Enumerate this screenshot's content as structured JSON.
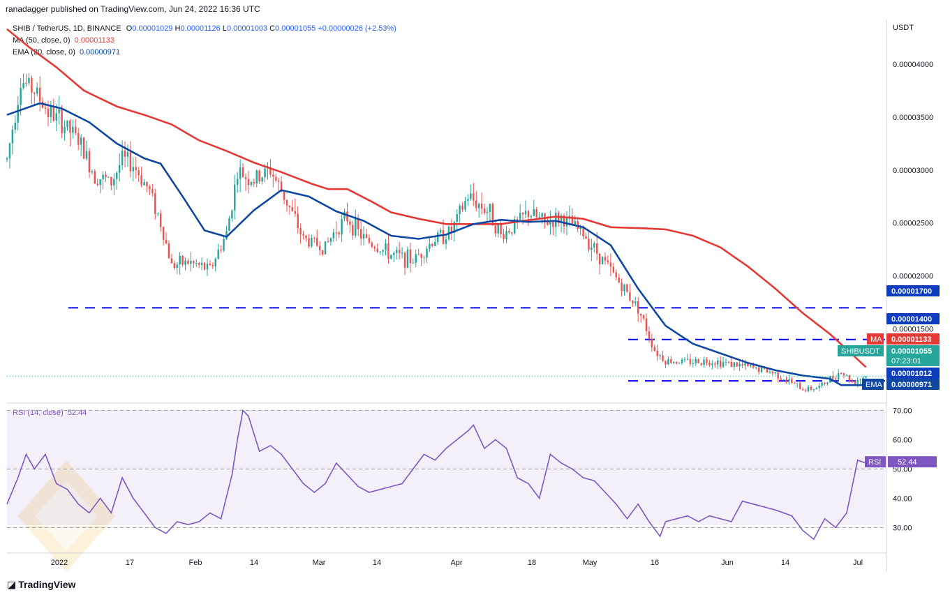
{
  "header": {
    "published_by": "ranadagger published on TradingView.com, Jun 24, 2022 16:36 UTC",
    "symbol": "SHIB / TetherUS, 1D, BINANCE",
    "open_label": "O",
    "open": "0.00001029",
    "high_label": "H",
    "high": "0.00001126",
    "low_label": "L",
    "low": "0.00001003",
    "close_label": "C",
    "close": "0.00001055",
    "change": "+0.00000026 (+2.53%)",
    "ma_label": "MA (50, close, 0)",
    "ma_value": "0.00001133",
    "ema_label": "EMA (20, close, 0)",
    "ema_value": "0.00000971"
  },
  "currency": "USDT",
  "brand": "TradingView",
  "rsi": {
    "label": "RSI (14, close)",
    "value": "52.44"
  },
  "colors": {
    "up": "#26a69a",
    "down": "#ef5350",
    "ma": "#e53935",
    "ema": "#0d47a1",
    "rsi": "#7e57c2",
    "level": "#1a1aff"
  },
  "chart_data": [
    {
      "type": "candlestick",
      "title": "",
      "x_ticks": [
        "2022",
        "17",
        "Feb",
        "14",
        "Mar",
        "14",
        "Apr",
        "18",
        "May",
        "16",
        "Jun",
        "14",
        "Jul"
      ],
      "y_ticks": [
        "0.00004000",
        "0.00003500",
        "0.00003000",
        "0.00002500",
        "0.00002000",
        "0.00001500"
      ],
      "ylim": [
        8.2e-06,
        4.42e-05
      ],
      "horizontal_levels": [
        1.7e-05,
        1.4e-05,
        1.01e-05
      ],
      "price_labels": [
        {
          "text": "0.00001700",
          "style": "level"
        },
        {
          "text": "0.00001400",
          "style": "level"
        },
        {
          "tag": "MA",
          "text": "0.00001133",
          "style": "ma"
        },
        {
          "tag": "SHIBUSDT",
          "text": "0.00001055",
          "sub": "07:23:01",
          "style": "last"
        },
        {
          "text": "0.00001012",
          "style": "level"
        },
        {
          "tag": "EMA",
          "text": "0.00000971",
          "style": "ema"
        }
      ],
      "series": [
        {
          "name": "MA",
          "values": [
            [
              0,
              4.33e-05
            ],
            [
              8,
              4.16e-05
            ],
            [
              18,
              3.97e-05
            ],
            [
              28,
              3.75e-05
            ],
            [
              40,
              3.6e-05
            ],
            [
              50,
              3.52e-05
            ],
            [
              60,
              3.43e-05
            ],
            [
              70,
              3.28e-05
            ],
            [
              80,
              3.18e-05
            ],
            [
              90,
              3.07e-05
            ],
            [
              100,
              2.98e-05
            ],
            [
              111,
              2.87e-05
            ],
            [
              117,
              2.82e-05
            ],
            [
              124,
              2.82e-05
            ],
            [
              133,
              2.7e-05
            ],
            [
              140,
              2.6e-05
            ],
            [
              150,
              2.54e-05
            ],
            [
              160,
              2.49e-05
            ],
            [
              170,
              2.49e-05
            ],
            [
              180,
              2.49e-05
            ],
            [
              188,
              2.52e-05
            ],
            [
              200,
              2.56e-05
            ],
            [
              210,
              2.54e-05
            ],
            [
              220,
              2.46e-05
            ],
            [
              232,
              2.45e-05
            ],
            [
              240,
              2.44e-05
            ],
            [
              250,
              2.38e-05
            ],
            [
              260,
              2.27e-05
            ],
            [
              270,
              2.09e-05
            ],
            [
              280,
              1.88e-05
            ],
            [
              290,
              1.65e-05
            ],
            [
              300,
              1.45e-05
            ],
            [
              308,
              1.26e-05
            ],
            [
              313,
              1.14e-05
            ]
          ]
        },
        {
          "name": "EMA",
          "values": [
            [
              0,
              3.52e-05
            ],
            [
              12,
              3.63e-05
            ],
            [
              20,
              3.58e-05
            ],
            [
              30,
              3.45e-05
            ],
            [
              40,
              3.25e-05
            ],
            [
              50,
              3.11e-05
            ],
            [
              56,
              3.06e-05
            ],
            [
              64,
              2.75e-05
            ],
            [
              72,
              2.43e-05
            ],
            [
              80,
              2.37e-05
            ],
            [
              90,
              2.62e-05
            ],
            [
              100,
              2.81e-05
            ],
            [
              110,
              2.75e-05
            ],
            [
              120,
              2.61e-05
            ],
            [
              130,
              2.52e-05
            ],
            [
              140,
              2.38e-05
            ],
            [
              150,
              2.35e-05
            ],
            [
              160,
              2.39e-05
            ],
            [
              170,
              2.49e-05
            ],
            [
              180,
              2.53e-05
            ],
            [
              190,
              2.51e-05
            ],
            [
              200,
              2.52e-05
            ],
            [
              210,
              2.46e-05
            ],
            [
              220,
              2.29e-05
            ],
            [
              230,
              1.88e-05
            ],
            [
              240,
              1.53e-05
            ],
            [
              250,
              1.36e-05
            ],
            [
              260,
              1.27e-05
            ],
            [
              270,
              1.18e-05
            ],
            [
              280,
              1.11e-05
            ],
            [
              290,
              1.06e-05
            ],
            [
              300,
              1.03e-05
            ],
            [
              304,
              9.7e-06
            ],
            [
              313,
              9.7e-06
            ]
          ]
        },
        {
          "name": "Price",
          "values": [
            [
              0,
              3.1e-05
            ],
            [
              5,
              3.85e-05
            ],
            [
              10,
              3.75e-05
            ],
            [
              15,
              3.55e-05
            ],
            [
              20,
              3.45e-05
            ],
            [
              26,
              3.28e-05
            ],
            [
              32,
              2.95e-05
            ],
            [
              38,
              2.88e-05
            ],
            [
              42,
              3.1e-05
            ],
            [
              46,
              3.05e-05
            ],
            [
              52,
              2.8e-05
            ],
            [
              56,
              2.5e-05
            ],
            [
              60,
              2.1e-05
            ],
            [
              66,
              2.13e-05
            ],
            [
              74,
              2.06e-05
            ],
            [
              80,
              2.4e-05
            ],
            [
              84,
              2.98e-05
            ],
            [
              90,
              2.9e-05
            ],
            [
              96,
              3e-05
            ],
            [
              102,
              2.7e-05
            ],
            [
              108,
              2.35e-05
            ],
            [
              116,
              2.27e-05
            ],
            [
              120,
              2.45e-05
            ],
            [
              124,
              2.55e-05
            ],
            [
              130,
              2.35e-05
            ],
            [
              140,
              2.2e-05
            ],
            [
              148,
              2.15e-05
            ],
            [
              156,
              2.35e-05
            ],
            [
              162,
              2.42e-05
            ],
            [
              168,
              2.75e-05
            ],
            [
              176,
              2.6e-05
            ],
            [
              180,
              2.38e-05
            ],
            [
              186,
              2.5e-05
            ],
            [
              190,
              2.6e-05
            ],
            [
              196,
              2.5e-05
            ],
            [
              202,
              2.55e-05
            ],
            [
              210,
              2.4e-05
            ],
            [
              220,
              2.05e-05
            ],
            [
              230,
              1.7e-05
            ],
            [
              236,
              1.3e-05
            ],
            [
              240,
              1.2e-05
            ],
            [
              248,
              1.19e-05
            ],
            [
              256,
              1.2e-05
            ],
            [
              262,
              1.18e-05
            ],
            [
              268,
              1.15e-05
            ],
            [
              274,
              1.12e-05
            ],
            [
              280,
              1.08e-05
            ],
            [
              290,
              9.3e-06
            ],
            [
              296,
              9.5e-06
            ],
            [
              300,
              1.03e-05
            ],
            [
              304,
              1.1e-05
            ],
            [
              308,
              1e-05
            ],
            [
              313,
              1.06e-05
            ]
          ]
        }
      ]
    },
    {
      "type": "line",
      "title": "",
      "y_ticks": [
        "70.00",
        "60.00",
        "50.00",
        "40.00",
        "30.00"
      ],
      "ylim": [
        22,
        72
      ],
      "bands": [
        30,
        50,
        70
      ],
      "series": [
        {
          "name": "RSI",
          "values": [
            [
              0,
              38
            ],
            [
              4,
              47
            ],
            [
              7,
              55
            ],
            [
              10,
              50
            ],
            [
              14,
              55
            ],
            [
              18,
              45
            ],
            [
              22,
              43
            ],
            [
              26,
              38
            ],
            [
              30,
              35
            ],
            [
              34,
              40
            ],
            [
              38,
              35
            ],
            [
              42,
              47
            ],
            [
              46,
              40
            ],
            [
              50,
              35
            ],
            [
              54,
              30
            ],
            [
              58,
              28
            ],
            [
              62,
              32
            ],
            [
              66,
              31
            ],
            [
              70,
              32
            ],
            [
              74,
              35
            ],
            [
              78,
              33
            ],
            [
              82,
              48
            ],
            [
              84,
              60
            ],
            [
              86,
              70
            ],
            [
              88,
              68
            ],
            [
              92,
              56
            ],
            [
              96,
              58
            ],
            [
              100,
              55
            ],
            [
              104,
              50
            ],
            [
              108,
              45
            ],
            [
              112,
              42
            ],
            [
              116,
              45
            ],
            [
              120,
              52
            ],
            [
              124,
              48
            ],
            [
              128,
              44
            ],
            [
              132,
              42
            ],
            [
              136,
              43
            ],
            [
              140,
              44
            ],
            [
              144,
              45
            ],
            [
              148,
              50
            ],
            [
              152,
              55
            ],
            [
              156,
              53
            ],
            [
              160,
              57
            ],
            [
              164,
              60
            ],
            [
              168,
              63
            ],
            [
              170,
              65
            ],
            [
              174,
              57
            ],
            [
              178,
              60
            ],
            [
              182,
              57
            ],
            [
              186,
              47
            ],
            [
              190,
              45
            ],
            [
              194,
              40
            ],
            [
              198,
              55
            ],
            [
              202,
              52
            ],
            [
              206,
              50
            ],
            [
              210,
              47
            ],
            [
              214,
              46
            ],
            [
              218,
              42
            ],
            [
              222,
              38
            ],
            [
              226,
              33
            ],
            [
              230,
              38
            ],
            [
              234,
              32
            ],
            [
              238,
              27
            ],
            [
              240,
              32
            ],
            [
              244,
              33
            ],
            [
              248,
              34
            ],
            [
              252,
              32
            ],
            [
              256,
              34
            ],
            [
              260,
              33
            ],
            [
              264,
              32
            ],
            [
              268,
              39
            ],
            [
              272,
              38
            ],
            [
              276,
              37
            ],
            [
              280,
              36
            ],
            [
              286,
              34
            ],
            [
              290,
              29
            ],
            [
              294,
              26
            ],
            [
              298,
              33
            ],
            [
              302,
              30
            ],
            [
              306,
              35
            ],
            [
              310,
              53
            ],
            [
              313,
              52
            ]
          ]
        }
      ]
    }
  ]
}
